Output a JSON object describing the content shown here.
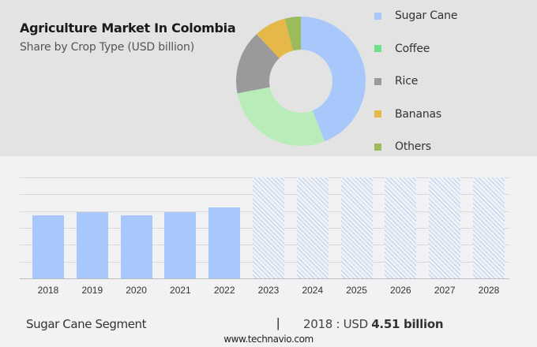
{
  "header": {
    "title": "Agriculture Market In Colombia",
    "subtitle": "Share by Crop Type (USD billion)"
  },
  "legend": [
    {
      "label": "Sugar Cane",
      "color": "#a8c8fc"
    },
    {
      "label": "Coffee",
      "color": "#6ee08a"
    },
    {
      "label": "Rice",
      "color": "#9a9a9a"
    },
    {
      "label": "Bananas",
      "color": "#e6b84a"
    },
    {
      "label": "Others",
      "color": "#9cbc5c"
    }
  ],
  "footer": {
    "segment": "Sugar Cane Segment",
    "separator": "|",
    "year_prefix": "2018 : USD ",
    "value": "4.51 billion",
    "source": "www.technavio.com"
  },
  "chart_data": [
    {
      "type": "pie",
      "title": "Agriculture Market In Colombia",
      "subtitle": "Share by Crop Type (USD billion)",
      "donut": true,
      "categories": [
        "Sugar Cane",
        "Coffee",
        "Rice",
        "Bananas",
        "Others"
      ],
      "values": [
        44,
        28,
        16,
        8,
        4
      ],
      "colors": [
        "#a8c8fc",
        "#b8ecb8",
        "#9a9a9a",
        "#e6b84a",
        "#9cbc5c"
      ],
      "legend_position": "right"
    },
    {
      "type": "bar",
      "series_name": "Sugar Cane Segment",
      "categories": [
        "2018",
        "2019",
        "2020",
        "2021",
        "2022",
        "2023",
        "2024",
        "2025",
        "2026",
        "2027",
        "2028"
      ],
      "values": [
        4.51,
        4.75,
        4.51,
        4.75,
        5.05,
        null,
        null,
        null,
        null,
        null,
        null
      ],
      "forecast": [
        false,
        false,
        false,
        false,
        false,
        true,
        true,
        true,
        true,
        true,
        true
      ],
      "grid": true,
      "ylim": [
        0,
        7.2
      ],
      "annotation": "2018 : USD 4.51 billion"
    }
  ]
}
